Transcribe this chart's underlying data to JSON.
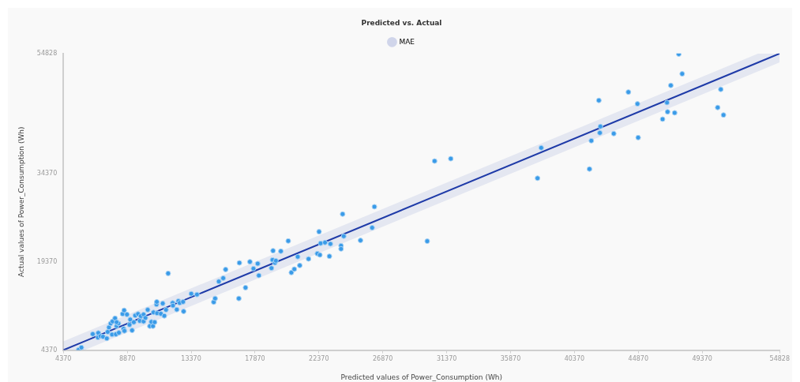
{
  "chart_data": {
    "type": "scatter",
    "title": "Predicted vs. Actual",
    "xlabel": "Predicted values of Power_Consumption (Wh)",
    "ylabel": "Actual values of Power_Consumption (Wh)",
    "xlim": [
      4370,
      54828
    ],
    "xticks": [
      4370,
      8870,
      13370,
      17870,
      22370,
      26870,
      31370,
      35870,
      40370,
      44870,
      49370,
      54828
    ],
    "ylim": [
      4370,
      54828
    ],
    "yticks": [
      4370,
      19370,
      34370,
      54828
    ],
    "grid": false,
    "legend": "top",
    "series": [
      {
        "type": "line",
        "name": "MAE",
        "color": "#1f3ba8",
        "x": [
          4370,
          5870,
          53328,
          54828
        ],
        "values": [
          4370,
          5870,
          53328,
          54828
        ],
        "lower": [
          4370,
          4370,
          51828,
          53328
        ],
        "upper": [
          5870,
          7370,
          54828,
          54828
        ]
      },
      {
        "color": "#3a9be8",
        "marker": "circle",
        "x": [
          5440,
          5640,
          6440,
          6830,
          6800,
          6980,
          7160,
          7430,
          7490,
          7580,
          7700,
          7830,
          8010,
          7800,
          8070,
          8280,
          8120,
          8250,
          8120,
          8540,
          8650,
          8850,
          8610,
          8670,
          9080,
          9030,
          9210,
          9330,
          9430,
          9630,
          9750,
          9820,
          10020,
          10020,
          10150,
          10310,
          10460,
          10570,
          10680,
          10800,
          10720,
          10970,
          11240,
          10930,
          10950,
          11370,
          11480,
          11600,
          11750,
          12070,
          12090,
          12360,
          12470,
          12560,
          12800,
          12840,
          13380,
          13780,
          14960,
          15060,
          15320,
          15630,
          15800,
          16730,
          16770,
          17200,
          17510,
          17760,
          18060,
          18140,
          19030,
          19100,
          19140,
          19270,
          19340,
          19690,
          20210,
          20430,
          20640,
          20880,
          21020,
          21640,
          22260,
          22380,
          22440,
          22490,
          22800,
          23110,
          23180,
          23930,
          23930,
          24040,
          24120,
          25300,
          26120,
          26280,
          30000,
          30520,
          31660,
          37770,
          38030,
          41430,
          41560,
          42090,
          42160,
          42200,
          43140,
          44170,
          44810,
          44860,
          46580,
          46890,
          46930,
          47160,
          47430,
          47720,
          47960,
          50460,
          50680,
          50870
        ],
        "values": [
          4410,
          4810,
          7100,
          7290,
          6520,
          6750,
          6660,
          6350,
          7470,
          8230,
          8900,
          9250,
          9790,
          7020,
          7060,
          7330,
          8450,
          8900,
          9120,
          10520,
          11140,
          10430,
          8000,
          7640,
          9580,
          8680,
          7730,
          9120,
          10250,
          10520,
          9350,
          10160,
          10430,
          9250,
          9850,
          11230,
          8450,
          9170,
          8450,
          9120,
          10790,
          10650,
          10560,
          12130,
          12580,
          12310,
          10200,
          11230,
          17420,
          12400,
          11950,
          11270,
          12710,
          12400,
          12580,
          10960,
          13960,
          13830,
          12540,
          13160,
          16040,
          16610,
          18090,
          13160,
          19210,
          15000,
          19400,
          18230,
          19080,
          17060,
          18320,
          19710,
          21280,
          19210,
          19570,
          21190,
          22940,
          17560,
          18140,
          20250,
          18770,
          19880,
          20790,
          24510,
          20560,
          22530,
          22670,
          20340,
          22440,
          22130,
          21590,
          27510,
          23750,
          23030,
          25190,
          28760,
          22900,
          36530,
          36930,
          33610,
          38780,
          35180,
          39990,
          46850,
          41330,
          42410,
          41200,
          48270,
          46260,
          40520,
          43660,
          46480,
          44910,
          49400,
          44740,
          54730,
          51370,
          45640,
          48730,
          44370
        ]
      }
    ]
  }
}
